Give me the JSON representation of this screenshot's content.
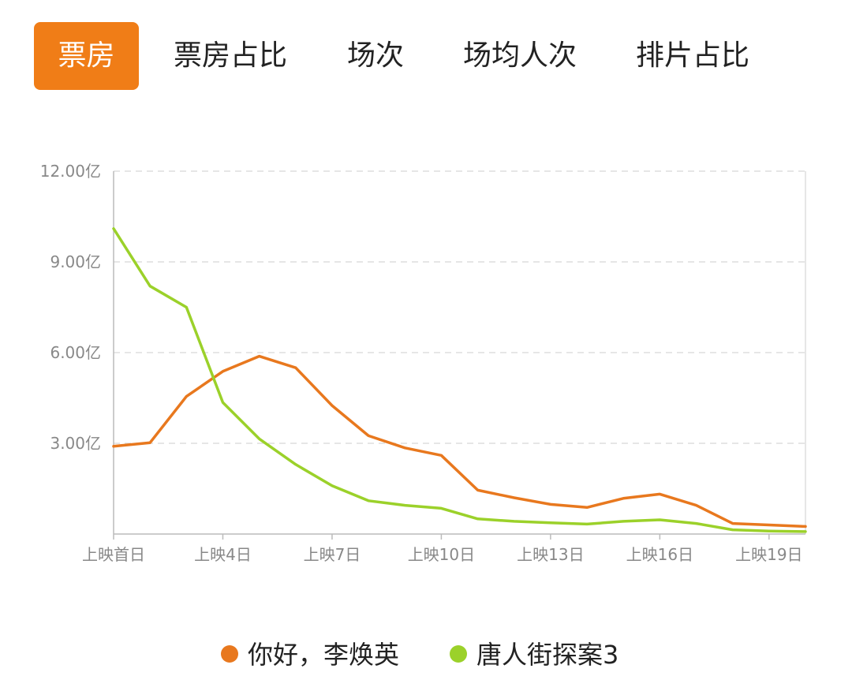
{
  "tabs": [
    {
      "label": "票房",
      "active": true
    },
    {
      "label": "票房占比",
      "active": false
    },
    {
      "label": "场次",
      "active": false
    },
    {
      "label": "场均人次",
      "active": false
    },
    {
      "label": "排片占比",
      "active": false
    }
  ],
  "colors": {
    "accent": "#F07D17",
    "series1": "#E8781E",
    "series2": "#9BD12A",
    "grid": "#dddddd",
    "axis": "#bbbbbb"
  },
  "chart_data": {
    "type": "line",
    "x": [
      1,
      2,
      3,
      4,
      5,
      6,
      7,
      8,
      9,
      10,
      11,
      12,
      13,
      14,
      15,
      16,
      17,
      18,
      19,
      20
    ],
    "x_tick_labels": [
      {
        "x": 1,
        "label": "上映首日"
      },
      {
        "x": 4,
        "label": "上映4日"
      },
      {
        "x": 7,
        "label": "上映7日"
      },
      {
        "x": 10,
        "label": "上映10日"
      },
      {
        "x": 13,
        "label": "上映13日"
      },
      {
        "x": 16,
        "label": "上映16日"
      },
      {
        "x": 19,
        "label": "上映19日"
      }
    ],
    "y_ticks": [
      3,
      6,
      9,
      12
    ],
    "y_tick_labels": [
      "3.00亿",
      "6.00亿",
      "9.00亿",
      "12.00亿"
    ],
    "ylim": [
      0,
      12
    ],
    "grid": true,
    "legend_placement": "bottom",
    "series": [
      {
        "name": "你好，李焕英",
        "color": "#E8781E",
        "values": [
          2.9,
          3.02,
          4.55,
          5.38,
          5.88,
          5.5,
          4.25,
          3.25,
          2.85,
          2.6,
          1.45,
          1.2,
          0.98,
          0.88,
          1.18,
          1.32,
          0.95,
          0.35,
          0.3,
          0.25
        ]
      },
      {
        "name": "唐人街探案3",
        "color": "#9BD12A",
        "values": [
          10.1,
          8.2,
          7.5,
          4.35,
          3.15,
          2.3,
          1.6,
          1.1,
          0.95,
          0.85,
          0.5,
          0.42,
          0.37,
          0.33,
          0.42,
          0.47,
          0.35,
          0.14,
          0.1,
          0.08
        ]
      }
    ]
  }
}
